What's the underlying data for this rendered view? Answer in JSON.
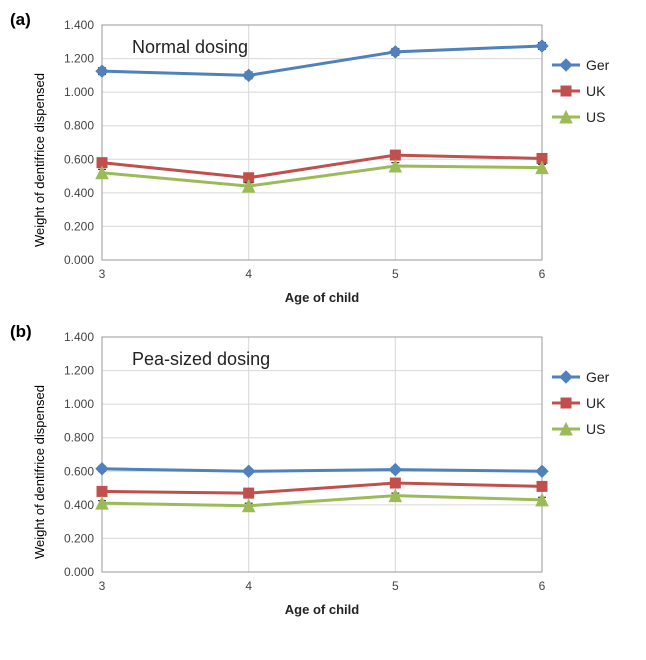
{
  "figure_width": 646,
  "figure_height": 660,
  "panels": [
    {
      "label": "(a)",
      "title": "Normal dosing",
      "xlabel": "Age of child",
      "ylabel": "Weight of dentifrice dispensed",
      "ylim": [
        0.0,
        1.4
      ],
      "ytick_step": 0.2,
      "xlim": [
        3,
        6
      ],
      "xticks": [
        3,
        4,
        5,
        6
      ],
      "grid_color": "#d8d8d8",
      "plot_bg": "#ffffff",
      "border_color": "#9a9a9a",
      "title_fontsize": 18,
      "label_fontsize": 13,
      "tick_fontsize": 12,
      "series": [
        {
          "name": "Ger",
          "color": "#4f81bd",
          "marker": "diamond",
          "line_width": 3,
          "x": [
            3,
            4,
            5,
            6
          ],
          "y": [
            1.125,
            1.1,
            1.24,
            1.275
          ],
          "err": [
            0.02,
            0.02,
            0.02,
            0.02
          ]
        },
        {
          "name": "UK",
          "color": "#c0504d",
          "marker": "square",
          "line_width": 3,
          "x": [
            3,
            4,
            5,
            6
          ],
          "y": [
            0.58,
            0.49,
            0.625,
            0.605
          ],
          "err": [
            0.02,
            0.02,
            0.02,
            0.02
          ]
        },
        {
          "name": "US",
          "color": "#9bbb59",
          "marker": "triangle",
          "line_width": 3,
          "x": [
            3,
            4,
            5,
            6
          ],
          "y": [
            0.52,
            0.44,
            0.56,
            0.55
          ],
          "err": [
            0.02,
            0.02,
            0.02,
            0.02
          ]
        }
      ],
      "legend": {
        "items": [
          "Ger",
          "UK",
          "US"
        ],
        "position": "right"
      }
    },
    {
      "label": "(b)",
      "title": "Pea-sized dosing",
      "xlabel": "Age of child",
      "ylabel": "Weight of dentifrice dispensed",
      "ylim": [
        0.0,
        1.4
      ],
      "ytick_step": 0.2,
      "xlim": [
        3,
        6
      ],
      "xticks": [
        3,
        4,
        5,
        6
      ],
      "grid_color": "#d8d8d8",
      "plot_bg": "#ffffff",
      "border_color": "#9a9a9a",
      "title_fontsize": 18,
      "label_fontsize": 13,
      "tick_fontsize": 12,
      "series": [
        {
          "name": "Ger",
          "color": "#4f81bd",
          "marker": "diamond",
          "line_width": 3,
          "x": [
            3,
            4,
            5,
            6
          ],
          "y": [
            0.615,
            0.6,
            0.61,
            0.6
          ],
          "err": [
            0.015,
            0.015,
            0.015,
            0.015
          ]
        },
        {
          "name": "UK",
          "color": "#c0504d",
          "marker": "square",
          "line_width": 3,
          "x": [
            3,
            4,
            5,
            6
          ],
          "y": [
            0.48,
            0.47,
            0.53,
            0.51
          ],
          "err": [
            0.015,
            0.015,
            0.015,
            0.015
          ]
        },
        {
          "name": "US",
          "color": "#9bbb59",
          "marker": "triangle",
          "line_width": 3,
          "x": [
            3,
            4,
            5,
            6
          ],
          "y": [
            0.41,
            0.395,
            0.455,
            0.43
          ],
          "err": [
            0.015,
            0.015,
            0.015,
            0.015
          ]
        }
      ],
      "legend": {
        "items": [
          "Ger",
          "UK",
          "US"
        ],
        "position": "right"
      }
    }
  ]
}
